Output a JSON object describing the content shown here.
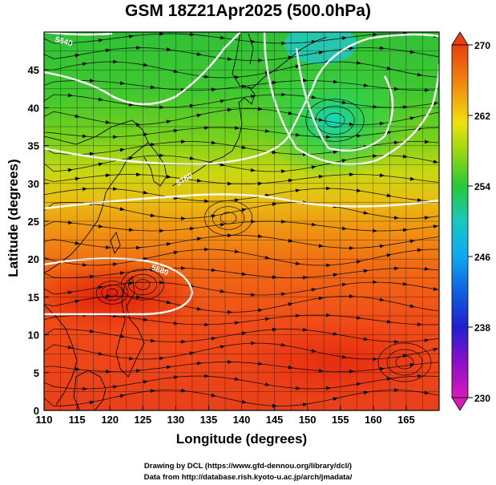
{
  "title": "GSM 18Z21Apr2025 (500.0hPa)",
  "x_axis": {
    "title": "Longitude (degrees)",
    "ticks": [
      "110",
      "115",
      "120",
      "125",
      "130",
      "135",
      "140",
      "145",
      "150",
      "155",
      "160",
      "165"
    ]
  },
  "y_axis": {
    "title": "Latitude  (degrees)",
    "ticks": [
      "0",
      "5",
      "10",
      "15",
      "20",
      "25",
      "30",
      "35",
      "40",
      "45"
    ]
  },
  "colorbar": {
    "labels": [
      "270",
      "262",
      "254",
      "246",
      "238",
      "230"
    ],
    "min": 230,
    "max": 270,
    "colors": [
      "#d01ab0",
      "#6010c8",
      "#1028d8",
      "#10a8f0",
      "#18d0a8",
      "#28d028",
      "#a8d810",
      "#f0e010",
      "#f09010",
      "#e84010"
    ]
  },
  "contours": {
    "labels": [
      "5640",
      "5760",
      "5880"
    ]
  },
  "credits": {
    "line1": "Drawing by DCL (https://www.gfd-dennou.org/library/dcl/)",
    "line2": "Data from http://database.rish.kyoto-u.ac.jp/arch/jmadata/"
  }
}
